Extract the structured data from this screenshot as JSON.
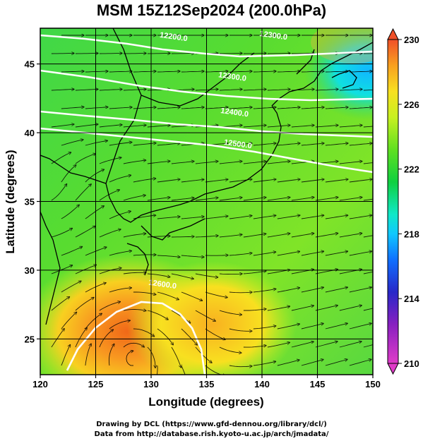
{
  "title": "MSM 15Z12Sep2024 (200.0hPa)",
  "x_axis": {
    "label": "Longitude (degrees)",
    "range": [
      120,
      150
    ],
    "ticks": [
      120,
      125,
      130,
      135,
      140,
      145,
      150
    ],
    "tick_labels": [
      "120",
      "125",
      "130",
      "135",
      "140",
      "145",
      "150"
    ]
  },
  "y_axis": {
    "label": "Latitude  (degrees)",
    "range": [
      22.4,
      47.6
    ],
    "ticks": [
      25,
      30,
      35,
      40,
      45
    ],
    "tick_labels": [
      "25",
      "30",
      "35",
      "40",
      "45"
    ]
  },
  "colorbar": {
    "min": 210,
    "max": 230,
    "ticks": [
      210,
      214,
      218,
      222,
      226,
      230
    ],
    "tick_labels": [
      "210",
      "214",
      "218",
      "222",
      "226",
      "230"
    ],
    "colors": [
      "#e040c0",
      "#a020c0",
      "#3020c0",
      "#1060ff",
      "#10c0ff",
      "#10e8c0",
      "#20d040",
      "#60e020",
      "#c0f020",
      "#f0e020",
      "#f8a020",
      "#f05020"
    ]
  },
  "contours": [
    {
      "label": "12200.0",
      "lon": 132.0,
      "lat": 46.8
    },
    {
      "label": "12300.0",
      "lon": 141.0,
      "lat": 46.9
    },
    {
      "label": "12300.0",
      "lon": 137.3,
      "lat": 43.9
    },
    {
      "label": "12400.0",
      "lon": 137.5,
      "lat": 41.3
    },
    {
      "label": "12500.0",
      "lon": 137.8,
      "lat": 39.0
    },
    {
      "label": "12600.0",
      "lon": 131.0,
      "lat": 28.8
    }
  ],
  "footer": {
    "line1": "Drawing by DCL (https://www.gfd-dennou.org/library/dcl/)",
    "line2": "Data from http://database.rish.kyoto-u.ac.jp/arch/jmadata/"
  }
}
